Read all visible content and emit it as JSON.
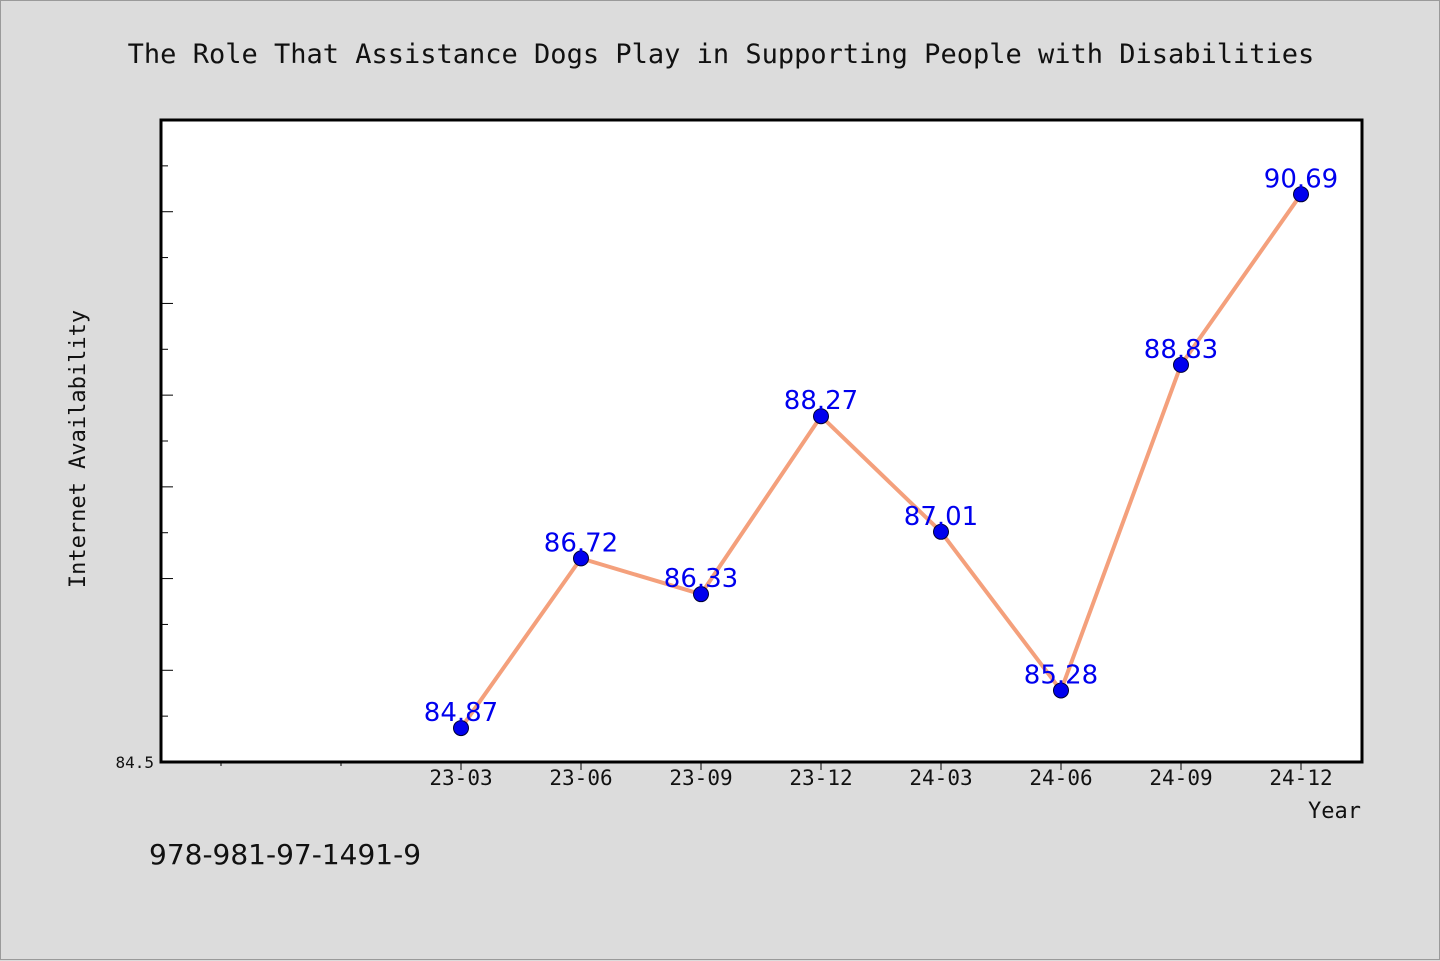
{
  "chart_data": {
    "type": "line",
    "title": "The Role That Assistance Dogs Play in Supporting People with Disabilities",
    "xlabel": "Year",
    "ylabel": "Internet Availability",
    "categories": [
      "23-03",
      "23-06",
      "23-09",
      "23-12",
      "24-03",
      "24-06",
      "24-09",
      "24-12"
    ],
    "values": [
      84.87,
      86.72,
      86.33,
      88.27,
      87.01,
      85.28,
      88.83,
      90.69
    ],
    "value_labels": [
      "84.87",
      "86.72",
      "86.33",
      "88.27",
      "87.01",
      "85.28",
      "88.83",
      "90.69"
    ],
    "ylim": [
      84.5,
      91.5
    ],
    "yticks_labeled": [
      "84.5"
    ],
    "grid": false,
    "legend": "none",
    "colors": {
      "line": "#f4a07c",
      "marker": "#0000ee",
      "data_label": "#0000ee",
      "plot_background": "#ffffff",
      "figure_background": "#dcdcdc"
    }
  },
  "footer": {
    "isbn": "978-981-97-1491-9"
  }
}
